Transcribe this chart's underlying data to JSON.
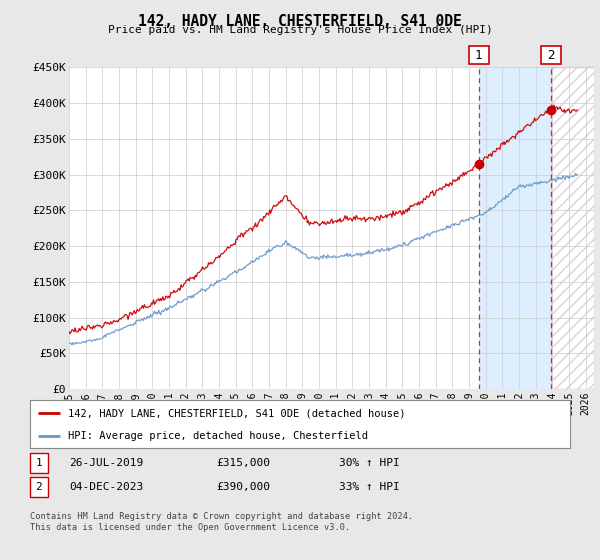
{
  "title": "142, HADY LANE, CHESTERFIELD, S41 0DE",
  "subtitle": "Price paid vs. HM Land Registry's House Price Index (HPI)",
  "footer": "Contains HM Land Registry data © Crown copyright and database right 2024.\nThis data is licensed under the Open Government Licence v3.0.",
  "legend_line1": "142, HADY LANE, CHESTERFIELD, S41 0DE (detached house)",
  "legend_line2": "HPI: Average price, detached house, Chesterfield",
  "annotation1_label": "1",
  "annotation1_date": "26-JUL-2019",
  "annotation1_price": "£315,000",
  "annotation1_hpi": "30% ↑ HPI",
  "annotation2_label": "2",
  "annotation2_date": "04-DEC-2023",
  "annotation2_price": "£390,000",
  "annotation2_hpi": "33% ↑ HPI",
  "red_color": "#cc0000",
  "blue_color": "#6699cc",
  "grid_color": "#cccccc",
  "background_color": "#e8e8e8",
  "plot_bg_color": "#ffffff",
  "shade_color": "#ddeeff",
  "ylim": [
    0,
    450000
  ],
  "yticks": [
    0,
    50000,
    100000,
    150000,
    200000,
    250000,
    300000,
    350000,
    400000,
    450000
  ],
  "ytick_labels": [
    "£0",
    "£50K",
    "£100K",
    "£150K",
    "£200K",
    "£250K",
    "£300K",
    "£350K",
    "£400K",
    "£450K"
  ],
  "xlim_start": 1995.0,
  "xlim_end": 2026.5,
  "xticks": [
    1995,
    1996,
    1997,
    1998,
    1999,
    2000,
    2001,
    2002,
    2003,
    2004,
    2005,
    2006,
    2007,
    2008,
    2009,
    2010,
    2011,
    2012,
    2013,
    2014,
    2015,
    2016,
    2017,
    2018,
    2019,
    2020,
    2021,
    2022,
    2023,
    2024,
    2025,
    2026
  ],
  "marker1_x": 2019.58,
  "marker1_y": 315000,
  "marker2_x": 2023.92,
  "marker2_y": 390000,
  "hatch_end": 2026.5
}
